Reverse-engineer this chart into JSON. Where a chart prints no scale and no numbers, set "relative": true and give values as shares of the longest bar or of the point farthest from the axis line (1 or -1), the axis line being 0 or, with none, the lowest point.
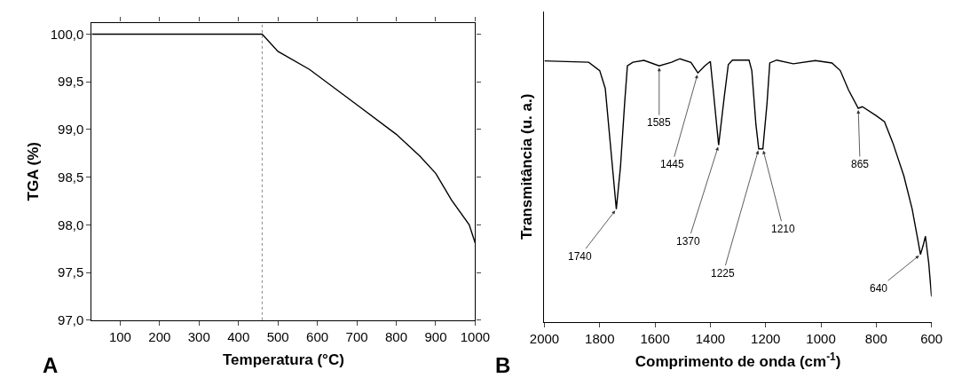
{
  "chart_data": [
    {
      "type": "line",
      "xlabel": "Temperatura (°C)",
      "ylabel": "TGA (%)",
      "annotations": [
        "A"
      ],
      "x": [
        28,
        460,
        500,
        580,
        700,
        800,
        860,
        900,
        940,
        985,
        1000
      ],
      "series": [
        {
          "color": "#000000",
          "values": [
            100.0,
            100.0,
            99.82,
            99.63,
            99.26,
            98.95,
            98.72,
            98.54,
            98.26,
            98.0,
            97.81
          ]
        }
      ],
      "xlim": [
        28,
        1000
      ],
      "xticks": [
        100,
        200,
        300,
        400,
        500,
        600,
        700,
        800,
        900,
        1000
      ],
      "ylim": [
        97.0,
        100.12
      ],
      "yticks": [
        {
          "value": 97.0,
          "label": "97,0"
        },
        {
          "value": 97.5,
          "label": "97,5"
        },
        {
          "value": 98.0,
          "label": "98,0"
        },
        {
          "value": 98.5,
          "label": "98,5"
        },
        {
          "value": 99.0,
          "label": "99,0"
        },
        {
          "value": 99.5,
          "label": "99,5"
        },
        {
          "value": 100.0,
          "label": "100,0"
        }
      ],
      "ref_lines": [
        {
          "axis": "x",
          "value": 460,
          "color": "#888888",
          "line_style": "dotted"
        }
      ],
      "marker": "none",
      "line_style": "solid"
    },
    {
      "type": "line",
      "xlabel": "Comprimento de onda (cm$^{-1}$)",
      "ylabel": "Transmitância (u. a.)",
      "annotations": [
        "B",
        {
          "text": "1740",
          "x": 1740,
          "y": 0.429
        },
        {
          "text": "1585",
          "x": 1585,
          "y": 0.973
        },
        {
          "text": "1445",
          "x": 1445,
          "y": 0.946
        },
        {
          "text": "1370",
          "x": 1370,
          "y": 0.672
        },
        {
          "text": "1225",
          "x": 1225,
          "y": 0.658
        },
        {
          "text": "1210",
          "x": 1210,
          "y": 0.658
        },
        {
          "text": "865",
          "x": 865,
          "y": 0.812
        },
        {
          "text": "640",
          "x": 640,
          "y": 0.257
        }
      ],
      "x": [
        2000,
        1840,
        1800,
        1780,
        1760,
        1740,
        1725,
        1710,
        1700,
        1680,
        1640,
        1585,
        1540,
        1510,
        1470,
        1445,
        1420,
        1400,
        1390,
        1370,
        1350,
        1335,
        1320,
        1260,
        1250,
        1235,
        1225,
        1210,
        1195,
        1185,
        1160,
        1100,
        1020,
        960,
        930,
        900,
        865,
        850,
        800,
        770,
        740,
        700,
        670,
        650,
        640,
        630,
        622,
        610,
        600
      ],
      "series": [
        {
          "color": "#000000",
          "values": [
            0.992,
            0.987,
            0.955,
            0.887,
            0.658,
            0.429,
            0.589,
            0.83,
            0.973,
            0.987,
            0.994,
            0.973,
            0.987,
            1.0,
            0.986,
            0.946,
            0.973,
            0.99,
            0.887,
            0.672,
            0.852,
            0.978,
            0.995,
            0.995,
            0.955,
            0.749,
            0.658,
            0.658,
            0.83,
            0.984,
            0.995,
            0.981,
            0.993,
            0.984,
            0.955,
            0.881,
            0.812,
            0.818,
            0.784,
            0.761,
            0.681,
            0.555,
            0.429,
            0.315,
            0.257,
            0.292,
            0.326,
            0.223,
            0.097
          ]
        }
      ],
      "relative": true,
      "xlim": [
        2000,
        600
      ],
      "xticks": [
        2000,
        1800,
        1600,
        1400,
        1200,
        1000,
        800,
        600
      ],
      "tick_labels": "x",
      "marker": "none",
      "line_style": "solid"
    }
  ]
}
